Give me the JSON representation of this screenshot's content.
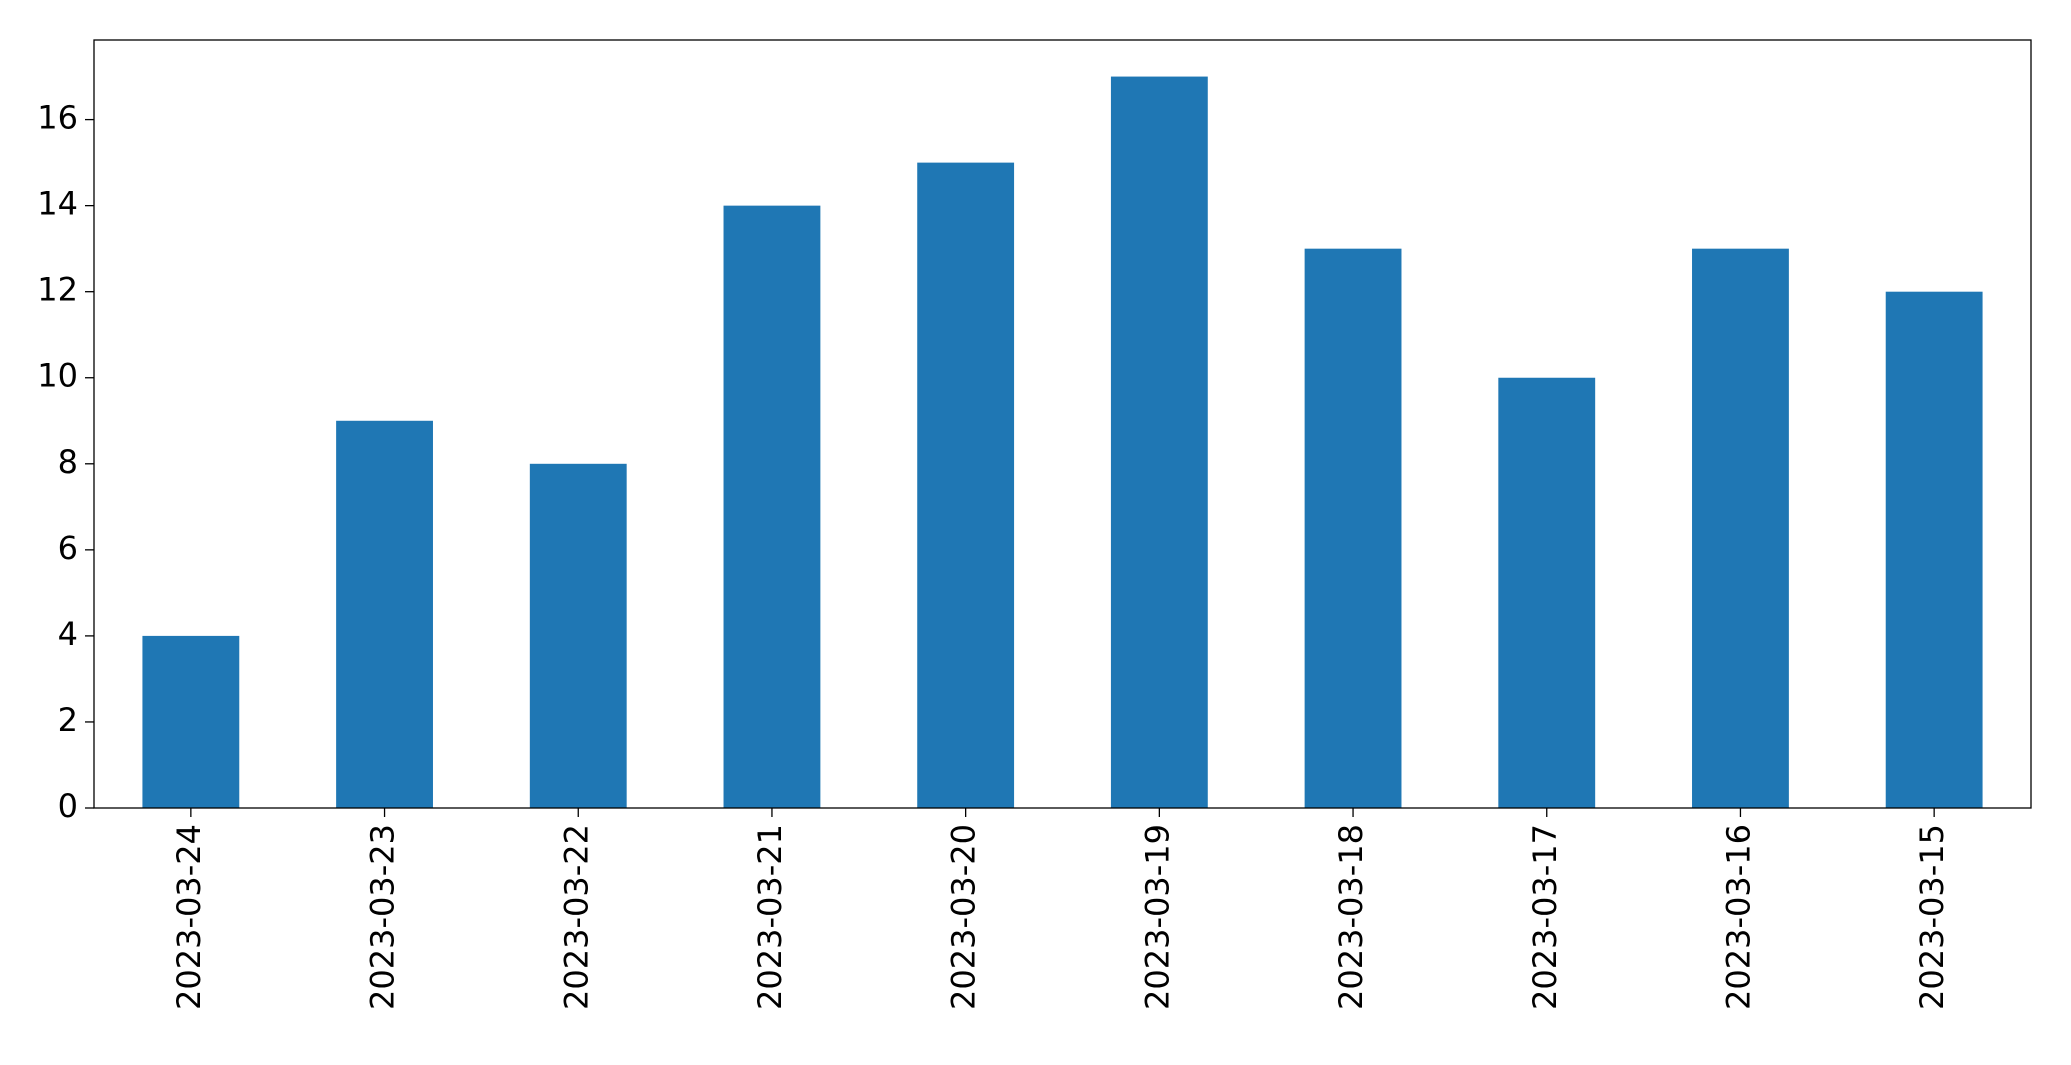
{
  "chart_data": {
    "type": "bar",
    "categories": [
      "2023-03-24",
      "2023-03-23",
      "2023-03-22",
      "2023-03-21",
      "2023-03-20",
      "2023-03-19",
      "2023-03-18",
      "2023-03-17",
      "2023-03-16",
      "2023-03-15"
    ],
    "values": [
      4,
      9,
      8,
      14,
      15,
      17,
      13,
      10,
      13,
      12
    ],
    "color": "#1f77b4",
    "ylim": [
      0,
      17.85
    ],
    "yticks": [
      0,
      2,
      4,
      6,
      8,
      10,
      12,
      14,
      16
    ],
    "grid": false
  }
}
